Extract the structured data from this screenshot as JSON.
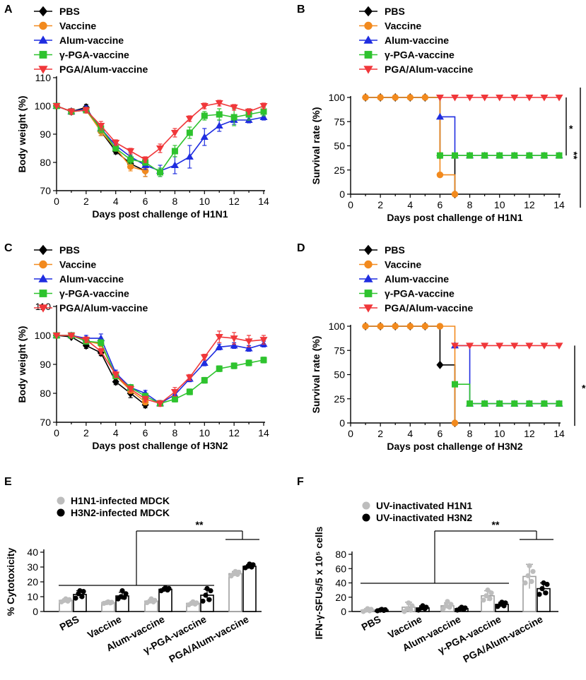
{
  "chart_data": [
    {
      "panel": "A",
      "type": "line",
      "xlabel": "Days post challenge of H1N1",
      "ylabel": "Body weight (%)",
      "xlim": [
        0,
        14
      ],
      "ylim": [
        70,
        110
      ],
      "xticks": [
        0,
        2,
        4,
        6,
        8,
        10,
        12,
        14
      ],
      "yticks": [
        70,
        80,
        90,
        100,
        110
      ],
      "series": [
        {
          "name": "PBS",
          "color": "#000000",
          "marker": "diamond",
          "x": [
            0,
            1,
            2,
            3,
            4,
            5,
            6
          ],
          "y": [
            100,
            98,
            99.5,
            91,
            84,
            79.5,
            77
          ],
          "err": [
            0,
            1,
            1,
            1.5,
            1,
            1.5,
            2
          ]
        },
        {
          "name": "Vaccine",
          "color": "#f28a1e",
          "marker": "circle",
          "x": [
            0,
            1,
            2,
            3,
            4,
            5,
            6
          ],
          "y": [
            100,
            98,
            98.5,
            91,
            85,
            78.5,
            77
          ],
          "err": [
            0,
            1,
            1,
            1.5,
            1,
            1.5,
            2
          ]
        },
        {
          "name": "Alum-vaccine",
          "color": "#1f2de0",
          "marker": "triangle-up",
          "x": [
            0,
            1,
            2,
            3,
            4,
            5,
            6,
            7,
            8,
            9,
            10,
            11,
            12,
            13,
            14
          ],
          "y": [
            100,
            98,
            99,
            92,
            86,
            82,
            79,
            77,
            79,
            82,
            89,
            93,
            95,
            95,
            96
          ],
          "err": [
            0,
            1,
            1,
            1.5,
            1,
            1.5,
            1.5,
            2,
            3,
            4,
            3,
            2,
            1.5,
            1,
            1
          ]
        },
        {
          "name": "γ-PGA-vaccine",
          "color": "#2ec32e",
          "marker": "square",
          "x": [
            0,
            1,
            2,
            3,
            4,
            5,
            6,
            7,
            8,
            9,
            10,
            11,
            12,
            13,
            14
          ],
          "y": [
            100,
            98,
            98.5,
            92,
            85,
            81,
            80,
            76.5,
            84,
            90.5,
            96.5,
            97,
            96,
            97,
            98
          ],
          "err": [
            0,
            1,
            1,
            1.5,
            1,
            1.5,
            1,
            1.5,
            2,
            2,
            1.5,
            2,
            3,
            2,
            1.5
          ]
        },
        {
          "name": "PGA/Alum-vaccine",
          "color": "#f0373a",
          "marker": "triangle-down",
          "x": [
            0,
            1,
            2,
            3,
            4,
            5,
            6,
            7,
            8,
            9,
            10,
            11,
            12,
            13,
            14
          ],
          "y": [
            100,
            98,
            98.5,
            93,
            87,
            84,
            81,
            85,
            90.5,
            95.5,
            100,
            101,
            99.5,
            98,
            100
          ],
          "err": [
            0,
            1,
            1,
            1.5,
            1,
            1,
            1,
            1.5,
            1.5,
            1,
            1,
            1,
            1,
            1,
            1
          ]
        }
      ]
    },
    {
      "panel": "B",
      "type": "line",
      "xlabel": "Days post challenge of H1N1",
      "ylabel": "Survival rate (%)",
      "xlim": [
        0,
        14
      ],
      "ylim": [
        0,
        100
      ],
      "xticks": [
        0,
        2,
        4,
        6,
        8,
        10,
        12,
        14
      ],
      "yticks": [
        0,
        25,
        50,
        75,
        100
      ],
      "significance": [
        "*",
        "**"
      ],
      "series": [
        {
          "name": "PBS",
          "color": "#000000",
          "marker": "diamond",
          "x": [
            1,
            2,
            3,
            4,
            5,
            6,
            7
          ],
          "y": [
            100,
            100,
            100,
            100,
            100,
            40,
            0
          ]
        },
        {
          "name": "Vaccine",
          "color": "#f28a1e",
          "marker": "circle",
          "x": [
            1,
            2,
            3,
            4,
            5,
            6,
            7
          ],
          "y": [
            100,
            100,
            100,
            100,
            100,
            20,
            0
          ]
        },
        {
          "name": "Alum-vaccine",
          "color": "#1f2de0",
          "marker": "triangle-up",
          "x": [
            6,
            7,
            8,
            9,
            10,
            11,
            12,
            13,
            14
          ],
          "y": [
            80,
            40,
            40,
            40,
            40,
            40,
            40,
            40,
            40
          ]
        },
        {
          "name": "γ-PGA-vaccine",
          "color": "#2ec32e",
          "marker": "square",
          "x": [
            6,
            7,
            8,
            9,
            10,
            11,
            12,
            13,
            14
          ],
          "y": [
            40,
            40,
            40,
            40,
            40,
            40,
            40,
            40,
            40
          ]
        },
        {
          "name": "PGA/Alum-vaccine",
          "color": "#f0373a",
          "marker": "triangle-down",
          "x": [
            6,
            7,
            8,
            9,
            10,
            11,
            12,
            13,
            14
          ],
          "y": [
            100,
            100,
            100,
            100,
            100,
            100,
            100,
            100,
            100
          ]
        }
      ]
    },
    {
      "panel": "C",
      "type": "line",
      "xlabel": "Days post challenge of H3N2",
      "ylabel": "Body weight (%)",
      "xlim": [
        0,
        14
      ],
      "ylim": [
        70,
        110
      ],
      "xticks": [
        0,
        2,
        4,
        6,
        8,
        10,
        12,
        14
      ],
      "yticks": [
        70,
        80,
        90,
        100,
        110
      ],
      "series": [
        {
          "name": "PBS",
          "color": "#000000",
          "marker": "diamond",
          "x": [
            0,
            1,
            2,
            3,
            4,
            5,
            6
          ],
          "y": [
            100,
            99.5,
            96.5,
            94,
            84,
            80,
            76
          ],
          "err": [
            0,
            0.5,
            1,
            1,
            1,
            1.5,
            1
          ]
        },
        {
          "name": "Vaccine",
          "color": "#f28a1e",
          "marker": "circle",
          "x": [
            0,
            1,
            2,
            3,
            4,
            5,
            6
          ],
          "y": [
            100,
            100,
            98,
            97,
            86,
            81,
            77
          ],
          "err": [
            0,
            0.5,
            1,
            1,
            1,
            1,
            1
          ]
        },
        {
          "name": "Alum-vaccine",
          "color": "#1f2de0",
          "marker": "triangle-up",
          "x": [
            0,
            1,
            2,
            3,
            4,
            5,
            6,
            7,
            8,
            9,
            10,
            11,
            12,
            13,
            14
          ],
          "y": [
            100,
            100,
            99,
            99,
            87,
            82,
            80,
            76.5,
            79.5,
            85,
            90.5,
            96,
            96.5,
            95.5,
            97
          ],
          "err": [
            0,
            0.5,
            1,
            1.5,
            1,
            1,
            1,
            1,
            1,
            1,
            1,
            1,
            1,
            1,
            1
          ]
        },
        {
          "name": "γ-PGA-vaccine",
          "color": "#2ec32e",
          "marker": "square",
          "x": [
            0,
            1,
            2,
            3,
            4,
            5,
            6,
            7,
            8,
            9,
            10,
            11,
            12,
            13,
            14
          ],
          "y": [
            100,
            100,
            98,
            97.5,
            86,
            82,
            79,
            76.5,
            78,
            80.5,
            84.5,
            88.5,
            89.5,
            90.5,
            91.5
          ],
          "err": [
            0,
            0.5,
            1,
            1,
            1,
            1,
            1,
            1,
            1,
            1,
            1,
            1,
            1,
            1,
            1
          ]
        },
        {
          "name": "PGA/Alum-vaccine",
          "color": "#f0373a",
          "marker": "triangle-down",
          "x": [
            0,
            1,
            2,
            3,
            4,
            5,
            6,
            7,
            8,
            9,
            10,
            11,
            12,
            13,
            14
          ],
          "y": [
            100,
            100,
            98.5,
            94.5,
            86.5,
            81.5,
            78,
            76.5,
            80.5,
            85.5,
            92.5,
            99.5,
            99,
            98,
            98.5
          ],
          "err": [
            0,
            0.5,
            1,
            1,
            1,
            1,
            1,
            1,
            1.5,
            1,
            1,
            2,
            2,
            2,
            1.5
          ]
        }
      ]
    },
    {
      "panel": "D",
      "type": "line",
      "xlabel": "Days post challenge of H3N2",
      "ylabel": "Survival rate (%)",
      "xlim": [
        0,
        14
      ],
      "ylim": [
        0,
        100
      ],
      "xticks": [
        0,
        2,
        4,
        6,
        8,
        10,
        12,
        14
      ],
      "yticks": [
        0,
        25,
        50,
        75,
        100
      ],
      "significance": [
        "*"
      ],
      "series": [
        {
          "name": "PBS",
          "color": "#000000",
          "marker": "diamond",
          "x": [
            1,
            2,
            3,
            4,
            5,
            6,
            7
          ],
          "y": [
            100,
            100,
            100,
            100,
            100,
            60,
            0
          ]
        },
        {
          "name": "Vaccine",
          "color": "#f28a1e",
          "marker": "circle",
          "x": [
            1,
            2,
            3,
            4,
            5,
            6,
            7
          ],
          "y": [
            100,
            100,
            100,
            100,
            100,
            100,
            0
          ]
        },
        {
          "name": "Alum-vaccine",
          "color": "#1f2de0",
          "marker": "triangle-up",
          "x": [
            7,
            8,
            9,
            10,
            11,
            12,
            13,
            14
          ],
          "y": [
            80,
            20,
            20,
            20,
            20,
            20,
            20,
            20
          ]
        },
        {
          "name": "γ-PGA-vaccine",
          "color": "#2ec32e",
          "marker": "square",
          "x": [
            7,
            8,
            9,
            10,
            11,
            12,
            13,
            14
          ],
          "y": [
            40,
            20,
            20,
            20,
            20,
            20,
            20,
            20
          ]
        },
        {
          "name": "PGA/Alum-vaccine",
          "color": "#f0373a",
          "marker": "triangle-down",
          "x": [
            7,
            8,
            9,
            10,
            11,
            12,
            13,
            14
          ],
          "y": [
            80,
            80,
            80,
            80,
            80,
            80,
            80,
            80
          ]
        }
      ]
    },
    {
      "panel": "E",
      "type": "bar",
      "ylabel": "% Cytotoxicity",
      "ylim": [
        0,
        40
      ],
      "yticks": [
        0,
        10,
        20,
        30,
        40
      ],
      "categories": [
        "PBS",
        "Vaccine",
        "Alum-vaccine",
        "γ-PGA-vaccine",
        "PGA/Alum-vaccine"
      ],
      "significance": "**",
      "series": [
        {
          "name": "H1N1-infected MDCK",
          "color": "#bdbdbd",
          "values": [
            7.5,
            6,
            7,
            5.5,
            25.5
          ],
          "err": [
            1,
            0.5,
            1,
            1,
            1.5
          ],
          "points": [
            [
              6.5,
              7,
              7.5,
              8,
              8.5
            ],
            [
              5.5,
              5.8,
              6,
              6.2,
              6.5
            ],
            [
              6,
              6.5,
              7,
              7.5,
              8.5
            ],
            [
              4.5,
              5,
              5.5,
              5.8,
              6.5
            ],
            [
              24,
              25,
              25.5,
              26.5,
              27
            ]
          ]
        },
        {
          "name": "H3N2-infected MDCK",
          "color": "#000000",
          "values": [
            11.5,
            10.5,
            15,
            11,
            30.5
          ],
          "err": [
            2.5,
            2.5,
            1,
            4,
            1
          ],
          "points": [
            [
              9,
              10,
              12,
              13.5,
              14
            ],
            [
              8.5,
              9.5,
              10,
              12,
              14
            ],
            [
              14,
              14.5,
              15,
              15.5,
              16
            ],
            [
              7,
              8,
              11,
              14,
              15.5
            ],
            [
              29.5,
              30,
              30.5,
              31.5,
              32
            ]
          ]
        }
      ]
    },
    {
      "panel": "F",
      "type": "bar",
      "ylabel": "IFN-γ-SFUs/5 x 10⁵ cells",
      "ylim": [
        0,
        80
      ],
      "yticks": [
        0,
        20,
        40,
        60,
        80
      ],
      "categories": [
        "PBS",
        "Vaccine",
        "Alum-vaccine",
        "γ-PGA-vaccine",
        "PGA/Alum-vaccine"
      ],
      "significance": "**",
      "series": [
        {
          "name": "UV-inactivated H1N1",
          "color": "#bdbdbd",
          "values": [
            2,
            6,
            8,
            22,
            49
          ],
          "err": [
            2,
            7,
            4,
            7,
            17
          ],
          "points": [
            [
              0,
              1,
              2,
              3,
              4
            ],
            [
              0,
              2,
              4,
              8,
              12
            ],
            [
              4,
              6,
              8,
              10,
              14
            ],
            [
              16,
              18,
              22,
              26,
              30
            ],
            [
              40,
              42,
              50,
              56,
              64
            ]
          ]
        },
        {
          "name": "UV-inactivated H3N2",
          "color": "#000000",
          "values": [
            2,
            5,
            4,
            10,
            32
          ],
          "err": [
            1,
            3,
            2,
            3,
            8
          ],
          "points": [
            [
              1,
              1.5,
              2,
              2.5,
              3
            ],
            [
              2,
              4,
              5,
              6,
              8
            ],
            [
              2,
              3,
              4,
              5,
              6
            ],
            [
              7,
              8,
              10,
              12,
              13
            ],
            [
              24,
              26,
              32,
              38,
              40
            ]
          ]
        }
      ]
    }
  ],
  "panel_letters": [
    "A",
    "B",
    "C",
    "D",
    "E",
    "F"
  ]
}
